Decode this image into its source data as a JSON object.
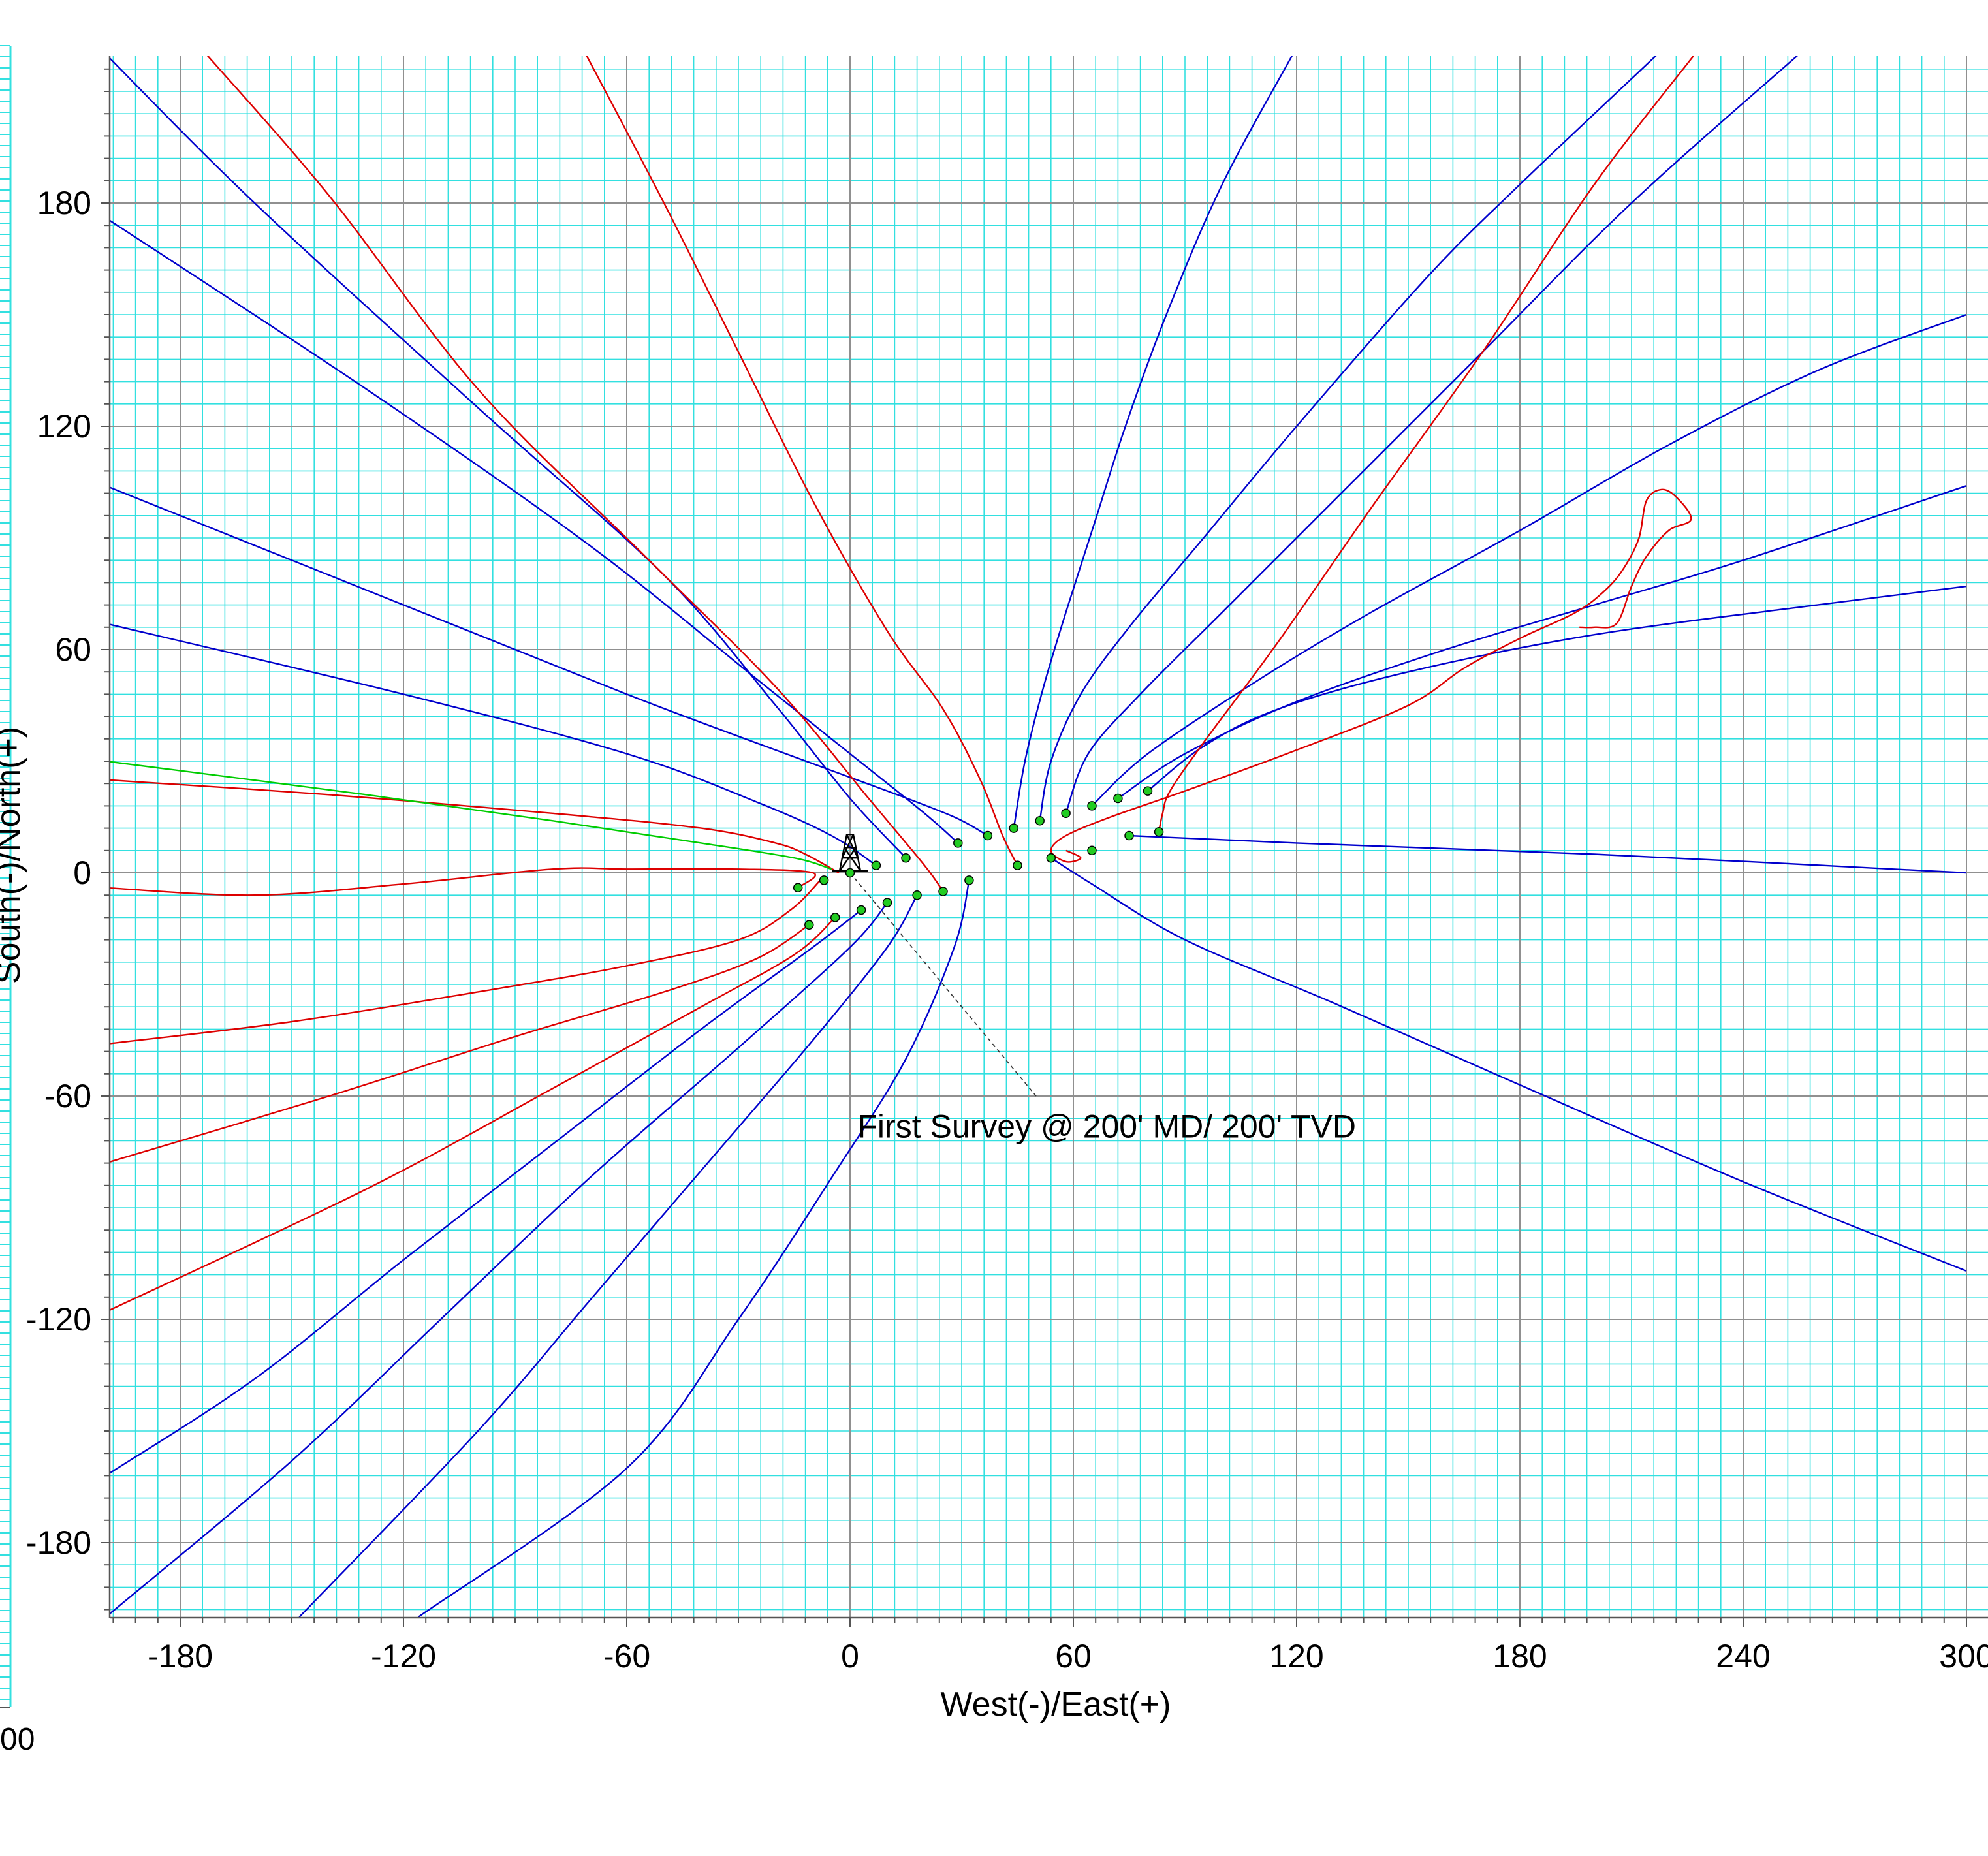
{
  "chart_data": {
    "type": "line",
    "title": "",
    "xlabel": "West(-)/East(+)",
    "ylabel": "South(-)/North(+)",
    "xlim": [
      -200,
      300
    ],
    "ylim": [
      -200,
      220
    ],
    "x_ticks": [
      -180,
      -120,
      -60,
      0,
      60,
      120,
      180,
      240,
      300
    ],
    "y_ticks": [
      -180,
      -120,
      -60,
      0,
      60,
      120,
      180
    ],
    "x_tick_labels": [
      "-180",
      "-120",
      "-60",
      "0",
      "60",
      "120",
      "180",
      "240",
      "300"
    ],
    "y_tick_labels": [
      "-180",
      "-120",
      "-60",
      "0",
      "60",
      "120",
      "180"
    ],
    "grid": true,
    "minor_grid_step": 6,
    "major_grid_step": 60,
    "colors": {
      "background": "#ffffff",
      "minor_grid": "#33e0e0",
      "major_grid": "#909090",
      "offset_well": "#0000cc",
      "red_well": "#dd0000",
      "green_well": "#00cc00",
      "marker": "#22cc22"
    },
    "annotation": {
      "text": "First Survey @ 200' MD/ 200' TVD",
      "x": 2,
      "y": -68,
      "pointer_from": [
        0,
        0
      ],
      "pointer_to": [
        50,
        -60
      ]
    },
    "left_panel_labels": [
      "00"
    ],
    "rig_symbol": {
      "name": "surface-rig-icon",
      "x": 0,
      "y": 4
    },
    "series": [
      {
        "color": "blue",
        "points": [
          [
            -200,
            220
          ],
          [
            -160,
            180
          ],
          [
            -100,
            125
          ],
          [
            -50,
            80
          ],
          [
            -20,
            45
          ],
          [
            0,
            20
          ],
          [
            15,
            4
          ]
        ]
      },
      {
        "color": "blue",
        "points": [
          [
            -200,
            176
          ],
          [
            -130,
            130
          ],
          [
            -70,
            88
          ],
          [
            -25,
            52
          ],
          [
            0,
            32
          ],
          [
            20,
            16
          ],
          [
            29,
            8
          ]
        ]
      },
      {
        "color": "blue",
        "points": [
          [
            -200,
            104
          ],
          [
            -120,
            72
          ],
          [
            -60,
            48
          ],
          [
            -20,
            33
          ],
          [
            10,
            22
          ],
          [
            28,
            15
          ],
          [
            37,
            10
          ]
        ]
      },
      {
        "color": "blue",
        "points": [
          [
            -200,
            67
          ],
          [
            -120,
            48
          ],
          [
            -60,
            32
          ],
          [
            -25,
            19
          ],
          [
            -5,
            10
          ],
          [
            7,
            2
          ]
        ]
      },
      {
        "color": "blue",
        "points": [
          [
            44,
            12
          ],
          [
            47,
            30
          ],
          [
            52,
            50
          ],
          [
            58,
            70
          ],
          [
            66,
            95
          ],
          [
            74,
            120
          ],
          [
            85,
            150
          ],
          [
            100,
            185
          ],
          [
            119,
            220
          ]
        ]
      },
      {
        "color": "blue",
        "points": [
          [
            51,
            14
          ],
          [
            54,
            30
          ],
          [
            62,
            48
          ],
          [
            75,
            66
          ],
          [
            95,
            90
          ],
          [
            120,
            120
          ],
          [
            155,
            160
          ],
          [
            180,
            185
          ],
          [
            217,
            220
          ]
        ]
      },
      {
        "color": "blue",
        "points": [
          [
            58,
            16
          ],
          [
            64,
            32
          ],
          [
            78,
            48
          ],
          [
            100,
            70
          ],
          [
            130,
            100
          ],
          [
            170,
            140
          ],
          [
            210,
            180
          ],
          [
            255,
            220
          ]
        ]
      },
      {
        "color": "blue",
        "points": [
          [
            65,
            18
          ],
          [
            80,
            32
          ],
          [
            110,
            52
          ],
          [
            140,
            70
          ],
          [
            180,
            92
          ],
          [
            220,
            115
          ],
          [
            260,
            135
          ],
          [
            300,
            150
          ]
        ]
      },
      {
        "color": "blue",
        "points": [
          [
            72,
            20
          ],
          [
            90,
            32
          ],
          [
            120,
            46
          ],
          [
            160,
            60
          ],
          [
            200,
            72
          ],
          [
            240,
            84
          ],
          [
            300,
            104
          ]
        ]
      },
      {
        "color": "blue",
        "points": [
          [
            80,
            22
          ],
          [
            95,
            34
          ],
          [
            115,
            44
          ],
          [
            150,
            54
          ],
          [
            200,
            64
          ],
          [
            260,
            72
          ],
          [
            300,
            77
          ]
        ]
      },
      {
        "color": "blue",
        "points": [
          [
            75,
            10
          ],
          [
            120,
            8
          ],
          [
            200,
            5
          ],
          [
            300,
            0
          ]
        ]
      },
      {
        "color": "blue",
        "points": [
          [
            54,
            4
          ],
          [
            65,
            -3
          ],
          [
            90,
            -18
          ],
          [
            130,
            -35
          ],
          [
            180,
            -57
          ],
          [
            240,
            -83
          ],
          [
            300,
            -107
          ]
        ]
      },
      {
        "color": "blue",
        "points": [
          [
            3,
            -10
          ],
          [
            -10,
            -20
          ],
          [
            -40,
            -42
          ],
          [
            -80,
            -73
          ],
          [
            -120,
            -104
          ],
          [
            -160,
            -136
          ],
          [
            -200,
            -162
          ]
        ]
      },
      {
        "color": "blue",
        "points": [
          [
            10,
            -8
          ],
          [
            0,
            -20
          ],
          [
            -30,
            -47
          ],
          [
            -70,
            -82
          ],
          [
            -110,
            -120
          ],
          [
            -150,
            -158
          ],
          [
            -200,
            -200
          ]
        ]
      },
      {
        "color": "blue",
        "points": [
          [
            18,
            -6
          ],
          [
            10,
            -20
          ],
          [
            -10,
            -45
          ],
          [
            -40,
            -80
          ],
          [
            -70,
            -115
          ],
          [
            -100,
            -150
          ],
          [
            -148,
            -200
          ]
        ]
      },
      {
        "color": "blue",
        "points": [
          [
            32,
            -2
          ],
          [
            28,
            -20
          ],
          [
            15,
            -50
          ],
          [
            -5,
            -82
          ],
          [
            -30,
            -120
          ],
          [
            -60,
            -160
          ],
          [
            -116,
            -200
          ]
        ]
      },
      {
        "color": "red",
        "points": [
          [
            -173,
            220
          ],
          [
            -140,
            182
          ],
          [
            -100,
            130
          ],
          [
            -55,
            85
          ],
          [
            -20,
            50
          ],
          [
            5,
            20
          ],
          [
            20,
            2
          ],
          [
            25,
            -5
          ]
        ]
      },
      {
        "color": "red",
        "points": [
          [
            -71,
            220
          ],
          [
            -50,
            180
          ],
          [
            -30,
            140
          ],
          [
            -10,
            100
          ],
          [
            10,
            65
          ],
          [
            25,
            44
          ],
          [
            35,
            25
          ],
          [
            41,
            10
          ],
          [
            45,
            2
          ]
        ]
      },
      {
        "color": "red",
        "points": [
          [
            83,
            11
          ],
          [
            84,
            16
          ],
          [
            86,
            22
          ],
          [
            95,
            35
          ],
          [
            115,
            62
          ],
          [
            140,
            98
          ],
          [
            170,
            140
          ],
          [
            200,
            185
          ],
          [
            227,
            220
          ]
        ]
      },
      {
        "color": "red",
        "points": [
          [
            -200,
            25
          ],
          [
            -140,
            21
          ],
          [
            -80,
            16
          ],
          [
            -40,
            12
          ],
          [
            -20,
            8
          ],
          [
            -12,
            5
          ],
          [
            -3,
            0
          ]
        ]
      },
      {
        "color": "red",
        "points": [
          [
            -200,
            -4
          ],
          [
            -160,
            -6
          ],
          [
            -120,
            -3
          ],
          [
            -80,
            1
          ],
          [
            -60,
            1
          ],
          [
            -30,
            1
          ],
          [
            -10,
            0
          ],
          [
            -14,
            -4
          ]
        ]
      },
      {
        "color": "red",
        "points": [
          [
            -8,
            -2
          ],
          [
            -16,
            -10
          ],
          [
            -30,
            -18
          ],
          [
            -60,
            -25
          ],
          [
            -100,
            -32
          ],
          [
            -150,
            -40
          ],
          [
            -200,
            -46
          ]
        ]
      },
      {
        "color": "red",
        "points": [
          [
            -11,
            -14
          ],
          [
            -25,
            -23
          ],
          [
            -50,
            -32
          ],
          [
            -90,
            -44
          ],
          [
            -140,
            -60
          ],
          [
            -200,
            -78
          ]
        ]
      },
      {
        "color": "red",
        "points": [
          [
            -4,
            -12
          ],
          [
            -15,
            -22
          ],
          [
            -40,
            -36
          ],
          [
            -80,
            -58
          ],
          [
            -130,
            -85
          ],
          [
            -200,
            -118
          ]
        ]
      },
      {
        "color": "red",
        "points": [
          [
            58,
            6
          ],
          [
            62,
            4
          ],
          [
            58,
            3
          ],
          [
            54,
            6
          ],
          [
            58,
            10
          ],
          [
            70,
            15
          ],
          [
            90,
            22
          ],
          [
            120,
            33
          ],
          [
            150,
            45
          ],
          [
            165,
            55
          ],
          [
            180,
            63
          ],
          [
            195,
            70
          ],
          [
            203,
            76
          ],
          [
            208,
            82
          ],
          [
            212,
            90
          ],
          [
            214,
            100
          ],
          [
            218,
            103
          ],
          [
            222,
            101
          ],
          [
            226,
            95
          ],
          [
            220,
            92
          ],
          [
            214,
            85
          ],
          [
            210,
            77
          ],
          [
            206,
            67
          ],
          [
            200,
            66
          ],
          [
            196,
            66
          ]
        ]
      },
      {
        "color": "green",
        "points": [
          [
            -200,
            30
          ],
          [
            -130,
            21
          ],
          [
            -80,
            14
          ],
          [
            -40,
            8
          ],
          [
            -15,
            4
          ],
          [
            -5,
            1
          ]
        ]
      }
    ],
    "markers": [
      [
        0,
        0
      ],
      [
        7,
        2
      ],
      [
        15,
        4
      ],
      [
        -7,
        -2
      ],
      [
        -14,
        -4
      ],
      [
        29,
        8
      ],
      [
        37,
        10
      ],
      [
        44,
        12
      ],
      [
        51,
        14
      ],
      [
        58,
        16
      ],
      [
        65,
        18
      ],
      [
        72,
        20
      ],
      [
        80,
        22
      ],
      [
        83,
        11
      ],
      [
        75,
        10
      ],
      [
        65,
        6
      ],
      [
        54,
        4
      ],
      [
        45,
        2
      ],
      [
        32,
        -2
      ],
      [
        25,
        -5
      ],
      [
        18,
        -6
      ],
      [
        10,
        -8
      ],
      [
        3,
        -10
      ],
      [
        -4,
        -12
      ],
      [
        -11,
        -14
      ]
    ]
  }
}
